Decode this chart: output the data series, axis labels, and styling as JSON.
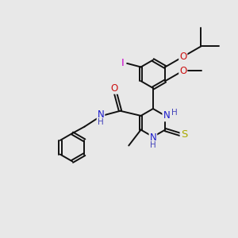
{
  "bg_color": "#e8e8e8",
  "bond_color": "#111111",
  "bond_width": 1.4,
  "dbo": 0.055,
  "atom_colors": {
    "N": "#1a1acc",
    "O": "#cc1111",
    "S": "#aaaa00",
    "I": "#cc00cc",
    "H": "#4444bb"
  },
  "fs": 8.5,
  "fs_small": 7.5,
  "xlim": [
    -4.2,
    5.0
  ],
  "ylim": [
    -4.5,
    5.2
  ]
}
